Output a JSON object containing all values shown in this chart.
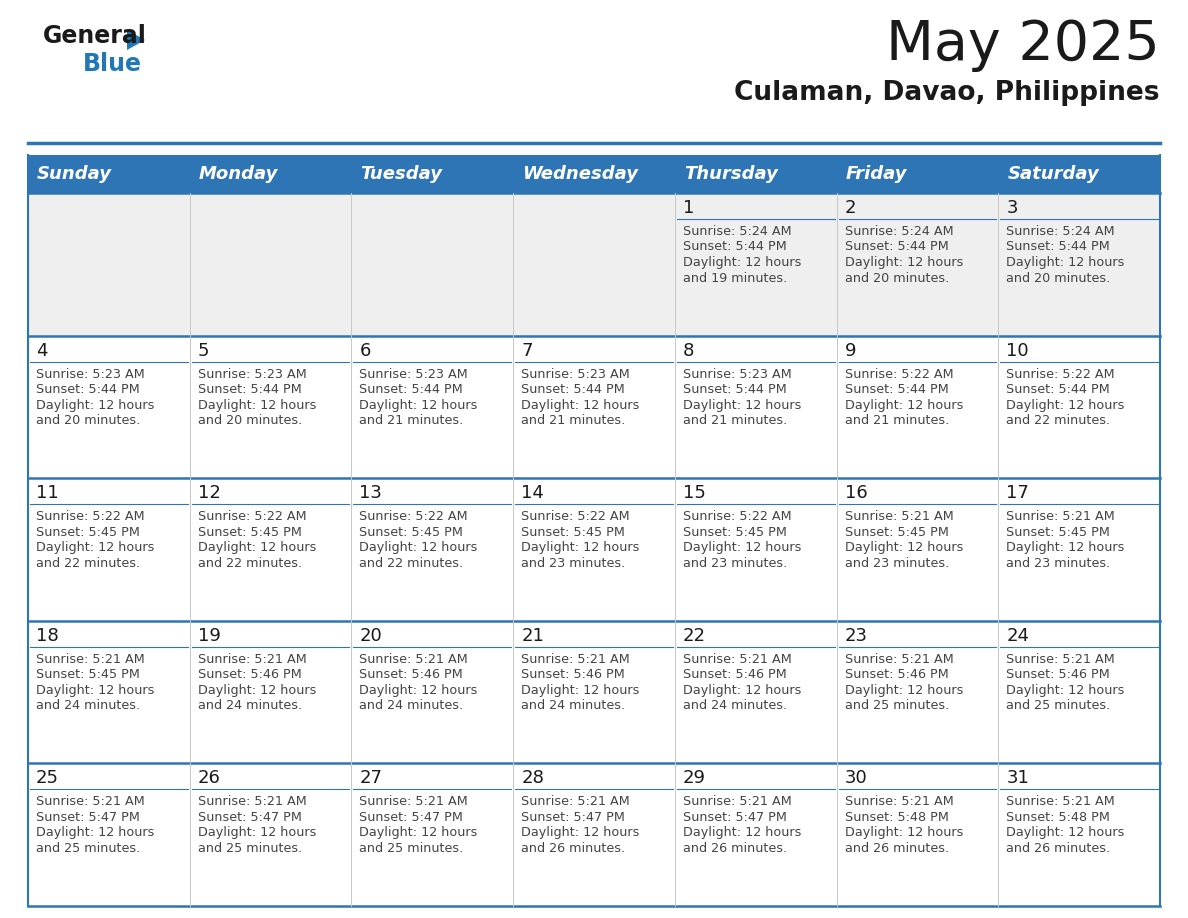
{
  "title": "May 2025",
  "subtitle": "Culaman, Davao, Philippines",
  "header_bg_color": "#2e75b6",
  "header_text_color": "#ffffff",
  "day_names": [
    "Sunday",
    "Monday",
    "Tuesday",
    "Wednesday",
    "Thursday",
    "Friday",
    "Saturday"
  ],
  "cell_bg_color": "#ffffff",
  "cell_row1_bg_color": "#efefef",
  "border_color": "#2e75b6",
  "cell_divider_color": "#2e75b6",
  "text_color": "#1a1a1a",
  "info_text_color": "#444444",
  "logo_general_color": "#1a1a1a",
  "logo_blue_color": "#2278b5",
  "calendar_data": [
    [
      null,
      null,
      null,
      null,
      {
        "day": 1,
        "sunrise": "5:24 AM",
        "sunset": "5:44 PM",
        "daylight_suffix": "19 minutes."
      },
      {
        "day": 2,
        "sunrise": "5:24 AM",
        "sunset": "5:44 PM",
        "daylight_suffix": "20 minutes."
      },
      {
        "day": 3,
        "sunrise": "5:24 AM",
        "sunset": "5:44 PM",
        "daylight_suffix": "20 minutes."
      }
    ],
    [
      {
        "day": 4,
        "sunrise": "5:23 AM",
        "sunset": "5:44 PM",
        "daylight_suffix": "20 minutes."
      },
      {
        "day": 5,
        "sunrise": "5:23 AM",
        "sunset": "5:44 PM",
        "daylight_suffix": "20 minutes."
      },
      {
        "day": 6,
        "sunrise": "5:23 AM",
        "sunset": "5:44 PM",
        "daylight_suffix": "21 minutes."
      },
      {
        "day": 7,
        "sunrise": "5:23 AM",
        "sunset": "5:44 PM",
        "daylight_suffix": "21 minutes."
      },
      {
        "day": 8,
        "sunrise": "5:23 AM",
        "sunset": "5:44 PM",
        "daylight_suffix": "21 minutes."
      },
      {
        "day": 9,
        "sunrise": "5:22 AM",
        "sunset": "5:44 PM",
        "daylight_suffix": "21 minutes."
      },
      {
        "day": 10,
        "sunrise": "5:22 AM",
        "sunset": "5:44 PM",
        "daylight_suffix": "22 minutes."
      }
    ],
    [
      {
        "day": 11,
        "sunrise": "5:22 AM",
        "sunset": "5:45 PM",
        "daylight_suffix": "22 minutes."
      },
      {
        "day": 12,
        "sunrise": "5:22 AM",
        "sunset": "5:45 PM",
        "daylight_suffix": "22 minutes."
      },
      {
        "day": 13,
        "sunrise": "5:22 AM",
        "sunset": "5:45 PM",
        "daylight_suffix": "22 minutes."
      },
      {
        "day": 14,
        "sunrise": "5:22 AM",
        "sunset": "5:45 PM",
        "daylight_suffix": "23 minutes."
      },
      {
        "day": 15,
        "sunrise": "5:22 AM",
        "sunset": "5:45 PM",
        "daylight_suffix": "23 minutes."
      },
      {
        "day": 16,
        "sunrise": "5:21 AM",
        "sunset": "5:45 PM",
        "daylight_suffix": "23 minutes."
      },
      {
        "day": 17,
        "sunrise": "5:21 AM",
        "sunset": "5:45 PM",
        "daylight_suffix": "23 minutes."
      }
    ],
    [
      {
        "day": 18,
        "sunrise": "5:21 AM",
        "sunset": "5:45 PM",
        "daylight_suffix": "24 minutes."
      },
      {
        "day": 19,
        "sunrise": "5:21 AM",
        "sunset": "5:46 PM",
        "daylight_suffix": "24 minutes."
      },
      {
        "day": 20,
        "sunrise": "5:21 AM",
        "sunset": "5:46 PM",
        "daylight_suffix": "24 minutes."
      },
      {
        "day": 21,
        "sunrise": "5:21 AM",
        "sunset": "5:46 PM",
        "daylight_suffix": "24 minutes."
      },
      {
        "day": 22,
        "sunrise": "5:21 AM",
        "sunset": "5:46 PM",
        "daylight_suffix": "24 minutes."
      },
      {
        "day": 23,
        "sunrise": "5:21 AM",
        "sunset": "5:46 PM",
        "daylight_suffix": "25 minutes."
      },
      {
        "day": 24,
        "sunrise": "5:21 AM",
        "sunset": "5:46 PM",
        "daylight_suffix": "25 minutes."
      }
    ],
    [
      {
        "day": 25,
        "sunrise": "5:21 AM",
        "sunset": "5:47 PM",
        "daylight_suffix": "25 minutes."
      },
      {
        "day": 26,
        "sunrise": "5:21 AM",
        "sunset": "5:47 PM",
        "daylight_suffix": "25 minutes."
      },
      {
        "day": 27,
        "sunrise": "5:21 AM",
        "sunset": "5:47 PM",
        "daylight_suffix": "25 minutes."
      },
      {
        "day": 28,
        "sunrise": "5:21 AM",
        "sunset": "5:47 PM",
        "daylight_suffix": "26 minutes."
      },
      {
        "day": 29,
        "sunrise": "5:21 AM",
        "sunset": "5:47 PM",
        "daylight_suffix": "26 minutes."
      },
      {
        "day": 30,
        "sunrise": "5:21 AM",
        "sunset": "5:48 PM",
        "daylight_suffix": "26 minutes."
      },
      {
        "day": 31,
        "sunrise": "5:21 AM",
        "sunset": "5:48 PM",
        "daylight_suffix": "26 minutes."
      }
    ]
  ]
}
